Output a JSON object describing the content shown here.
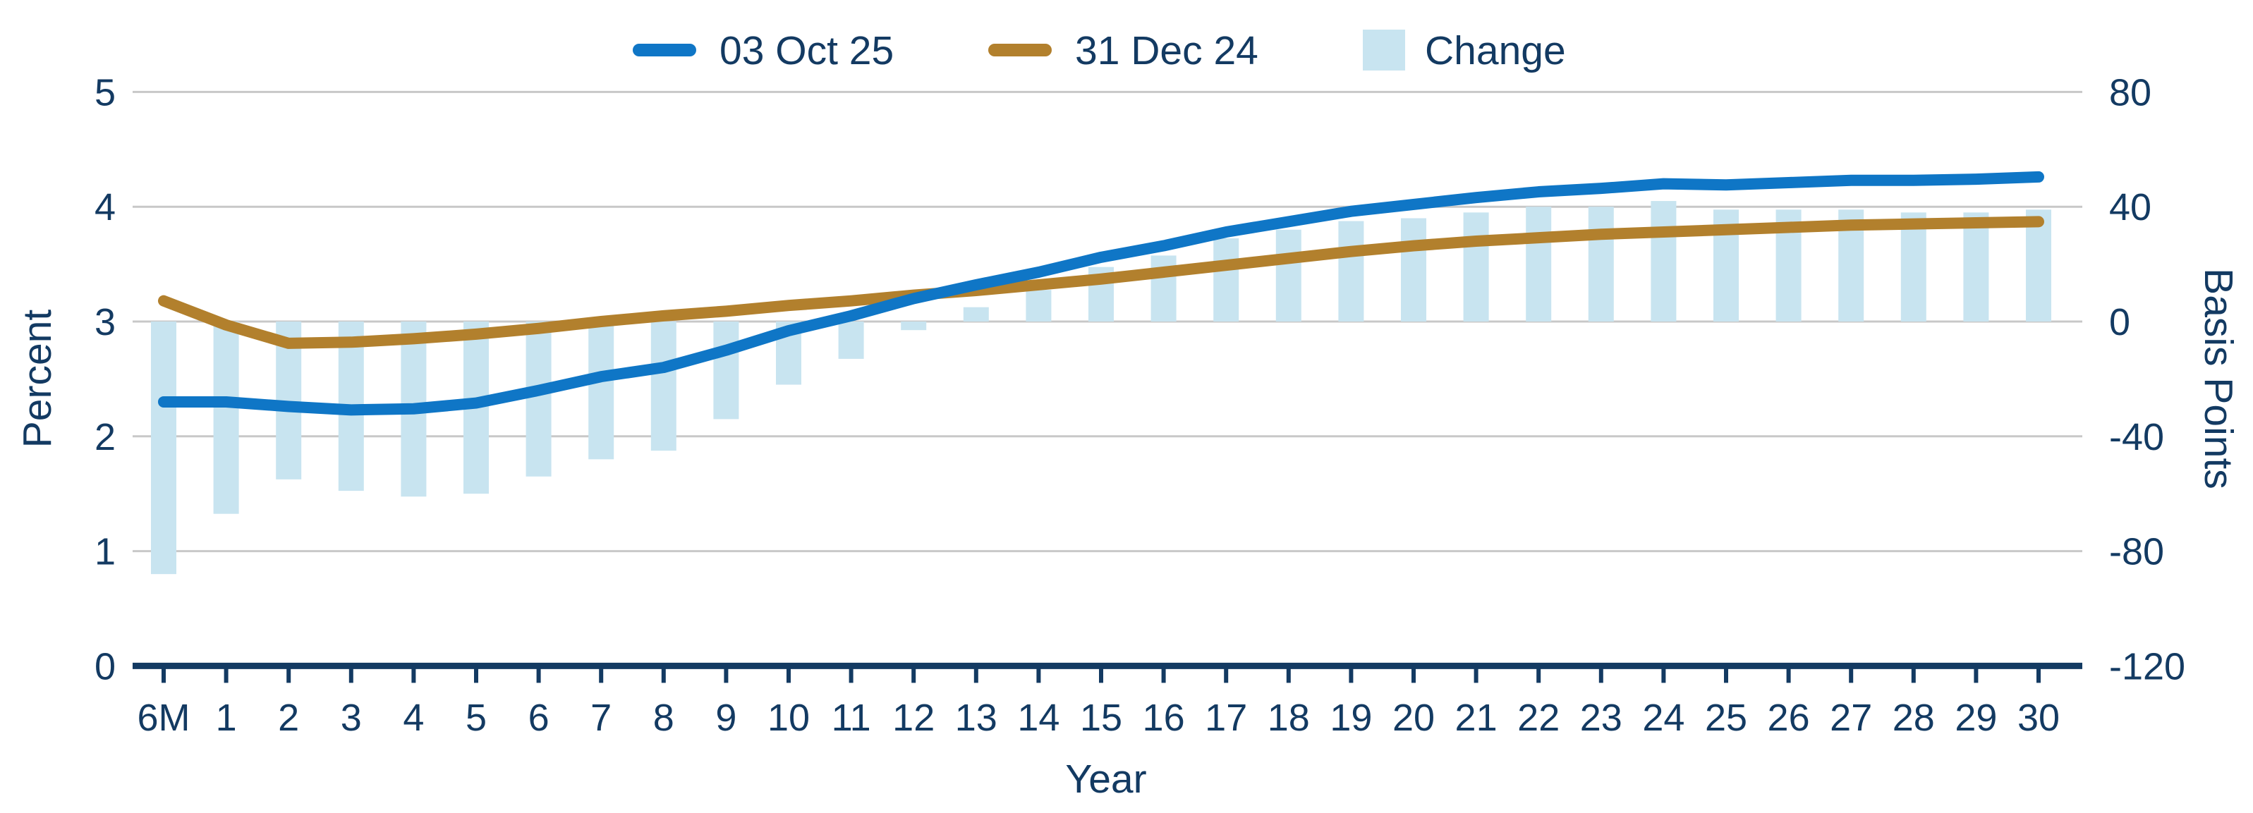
{
  "chart_data": {
    "type": "line-bar-combo",
    "title": "",
    "categories": [
      "6M",
      "1",
      "2",
      "3",
      "4",
      "5",
      "6",
      "7",
      "8",
      "9",
      "10",
      "11",
      "12",
      "13",
      "14",
      "15",
      "16",
      "17",
      "18",
      "19",
      "20",
      "21",
      "22",
      "23",
      "24",
      "25",
      "26",
      "27",
      "28",
      "29",
      "30"
    ],
    "series": [
      {
        "name": "03 Oct 25",
        "type": "line",
        "axis": "left",
        "color": "#0F76C6",
        "values": [
          2.3,
          2.3,
          2.26,
          2.23,
          2.24,
          2.29,
          2.4,
          2.52,
          2.6,
          2.75,
          2.92,
          3.05,
          3.2,
          3.32,
          3.43,
          3.56,
          3.66,
          3.78,
          3.87,
          3.96,
          4.02,
          4.08,
          4.13,
          4.16,
          4.2,
          4.19,
          4.21,
          4.23,
          4.23,
          4.24,
          4.26
        ]
      },
      {
        "name": "31 Dec 24",
        "type": "line",
        "axis": "left",
        "color": "#B2802D",
        "values": [
          3.18,
          2.97,
          2.81,
          2.82,
          2.85,
          2.89,
          2.94,
          3.0,
          3.05,
          3.09,
          3.14,
          3.18,
          3.23,
          3.27,
          3.32,
          3.37,
          3.43,
          3.49,
          3.55,
          3.61,
          3.66,
          3.7,
          3.73,
          3.76,
          3.78,
          3.8,
          3.82,
          3.84,
          3.85,
          3.86,
          3.87
        ]
      },
      {
        "name": "Change",
        "type": "bar",
        "axis": "right",
        "color": "#C8E4F0",
        "values": [
          -88,
          -67,
          -55,
          -59,
          -61,
          -60,
          -54,
          -48,
          -45,
          -34,
          -22,
          -13,
          -3,
          5,
          11,
          19,
          23,
          29,
          32,
          35,
          36,
          38,
          40,
          40,
          42,
          39,
          39,
          39,
          38,
          38,
          39
        ]
      }
    ],
    "left_axis": {
      "label": "Percent",
      "ticks": [
        5,
        4,
        3,
        2,
        1,
        0
      ],
      "range": [
        0,
        5
      ]
    },
    "right_axis": {
      "label": "Basis Points",
      "ticks": [
        80,
        40,
        0,
        -40,
        -80,
        -120
      ],
      "range": [
        -120,
        80
      ]
    },
    "x_axis": {
      "label": "Year"
    },
    "grid": "horizontal",
    "legend_position": "top-center",
    "colors": {
      "text_navy": "#133A62",
      "axis_line": "#133A62",
      "gridline_gray": "#C8C8C8",
      "background": "#FFFFFF"
    }
  }
}
